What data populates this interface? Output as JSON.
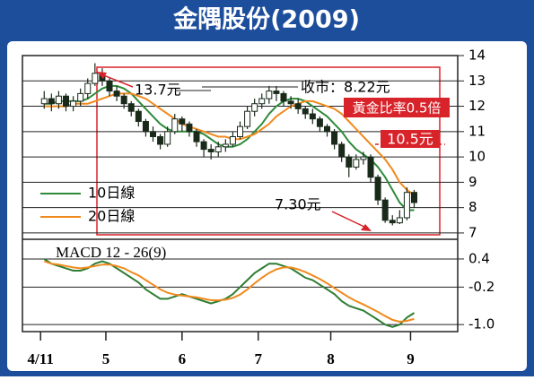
{
  "chart_data": [
    {
      "type": "candlestick",
      "title": "金隅股份(2009)",
      "x": [
        1,
        3,
        5,
        7,
        9,
        11,
        13,
        15,
        17,
        19,
        21,
        23,
        25,
        27,
        29,
        31,
        33,
        35,
        37,
        39,
        41,
        43,
        45,
        47,
        49,
        51,
        53,
        55,
        57,
        59,
        61,
        63,
        65,
        67,
        69,
        71,
        73,
        75,
        77,
        79,
        81,
        83,
        85,
        87,
        89,
        91,
        93,
        95,
        97,
        99,
        101,
        103
      ],
      "open": [
        12.1,
        12.3,
        12.1,
        12.4,
        12.0,
        12.2,
        12.5,
        12.9,
        13.3,
        13.0,
        12.6,
        12.4,
        12.1,
        11.8,
        11.4,
        11.0,
        10.8,
        10.5,
        11.0,
        11.5,
        11.3,
        11.0,
        10.6,
        10.3,
        10.2,
        10.4,
        10.5,
        10.8,
        11.2,
        11.8,
        12.1,
        12.3,
        12.6,
        12.5,
        12.2,
        12.1,
        11.9,
        11.7,
        11.5,
        11.2,
        11.0,
        10.5,
        10.0,
        9.6,
        9.9,
        10.0,
        9.2,
        8.3,
        7.5,
        7.4,
        7.6,
        8.6
      ],
      "high": [
        12.6,
        12.5,
        12.6,
        12.5,
        12.4,
        12.7,
        13.1,
        13.7,
        13.5,
        13.1,
        12.8,
        12.5,
        12.2,
        11.9,
        11.5,
        11.2,
        10.9,
        11.2,
        11.7,
        11.6,
        11.4,
        11.1,
        10.7,
        10.5,
        10.6,
        10.7,
        11.0,
        11.4,
        12.0,
        12.3,
        12.5,
        12.8,
        12.8,
        12.6,
        12.4,
        12.3,
        12.0,
        11.9,
        11.6,
        11.3,
        11.1,
        10.6,
        10.1,
        10.1,
        10.2,
        10.1,
        9.3,
        8.4,
        7.7,
        7.9,
        8.8,
        8.7
      ],
      "low": [
        11.9,
        11.8,
        11.9,
        11.8,
        11.8,
        12.0,
        12.3,
        12.8,
        12.8,
        12.4,
        12.2,
        11.9,
        11.6,
        11.2,
        10.8,
        10.6,
        10.3,
        10.4,
        10.9,
        11.0,
        10.8,
        10.4,
        10.0,
        9.9,
        10.0,
        10.2,
        10.4,
        10.7,
        11.1,
        11.6,
        11.9,
        12.1,
        12.2,
        12.0,
        11.9,
        11.7,
        11.5,
        11.3,
        11.0,
        10.8,
        10.3,
        9.8,
        9.2,
        9.5,
        9.7,
        9.0,
        8.1,
        7.4,
        7.3,
        7.35,
        7.5,
        8.0
      ],
      "close": [
        12.3,
        12.1,
        12.4,
        12.0,
        12.2,
        12.5,
        12.9,
        13.3,
        13.0,
        12.6,
        12.4,
        12.1,
        11.8,
        11.4,
        11.0,
        10.8,
        10.5,
        11.0,
        11.5,
        11.3,
        11.0,
        10.6,
        10.3,
        10.2,
        10.4,
        10.5,
        10.8,
        11.2,
        11.8,
        12.1,
        12.3,
        12.6,
        12.5,
        12.2,
        12.1,
        11.9,
        11.7,
        11.5,
        11.2,
        11.0,
        10.5,
        10.0,
        9.6,
        9.9,
        10.0,
        9.2,
        8.3,
        7.5,
        7.4,
        7.6,
        8.6,
        8.2
      ],
      "candle_color": "#1a2a1a",
      "series": [
        {
          "name": "10日線",
          "color": "#2e8b3a",
          "values": [
            12.1,
            12.1,
            12.2,
            12.2,
            12.2,
            12.2,
            12.3,
            12.5,
            12.7,
            12.8,
            12.8,
            12.7,
            12.5,
            12.2,
            11.9,
            11.6,
            11.3,
            11.1,
            11.0,
            11.0,
            11.0,
            11.0,
            10.9,
            10.7,
            10.5,
            10.4,
            10.4,
            10.5,
            10.7,
            11.0,
            11.3,
            11.7,
            12.0,
            12.2,
            12.3,
            12.3,
            12.2,
            12.0,
            11.8,
            11.6,
            11.3,
            11.0,
            10.6,
            10.3,
            10.1,
            9.9,
            9.6,
            9.2,
            8.7,
            8.2,
            7.9,
            7.9
          ]
        },
        {
          "name": "20日線",
          "color": "#f08a1e",
          "values": [
            12.0,
            12.0,
            12.0,
            12.0,
            12.1,
            12.1,
            12.1,
            12.2,
            12.3,
            12.4,
            12.5,
            12.5,
            12.5,
            12.4,
            12.3,
            12.1,
            11.9,
            11.7,
            11.5,
            11.3,
            11.2,
            11.1,
            11.0,
            10.9,
            10.8,
            10.8,
            10.7,
            10.7,
            10.8,
            10.9,
            11.1,
            11.3,
            11.6,
            11.8,
            12.0,
            12.1,
            12.2,
            12.2,
            12.1,
            12.0,
            11.9,
            11.7,
            11.4,
            11.1,
            10.8,
            10.5,
            10.2,
            9.9,
            9.5,
            9.0,
            8.7,
            8.5
          ]
        }
      ],
      "annotations": [
        "13.7元",
        "收市：8.22元",
        "黃金比率0.5倍",
        "7.30元"
      ],
      "level_line": {
        "value": 10.5,
        "label": "10.5元",
        "color": "#d8232a"
      },
      "xlim": [
        -5,
        115
      ],
      "ylim": [
        6.75,
        14
      ],
      "yticks": [
        7,
        8,
        9,
        10,
        11,
        12,
        13,
        14
      ],
      "grid": true
    },
    {
      "type": "line",
      "title": "MACD 12 - 26(9)",
      "x": [
        1,
        3,
        5,
        7,
        9,
        11,
        13,
        15,
        17,
        19,
        21,
        23,
        25,
        27,
        29,
        31,
        33,
        35,
        37,
        39,
        41,
        43,
        45,
        47,
        49,
        51,
        53,
        55,
        57,
        59,
        61,
        63,
        65,
        67,
        69,
        71,
        73,
        75,
        77,
        79,
        81,
        83,
        85,
        87,
        89,
        91,
        93,
        95,
        97,
        99,
        101,
        103
      ],
      "series": [
        {
          "color": "#2e7d32",
          "values": [
            0.4,
            0.3,
            0.25,
            0.2,
            0.15,
            0.15,
            0.2,
            0.3,
            0.35,
            0.3,
            0.2,
            0.1,
            0.0,
            -0.1,
            -0.25,
            -0.35,
            -0.45,
            -0.45,
            -0.4,
            -0.35,
            -0.4,
            -0.45,
            -0.5,
            -0.55,
            -0.5,
            -0.45,
            -0.35,
            -0.2,
            -0.05,
            0.1,
            0.2,
            0.3,
            0.3,
            0.25,
            0.2,
            0.1,
            0.0,
            -0.05,
            -0.15,
            -0.25,
            -0.35,
            -0.5,
            -0.6,
            -0.65,
            -0.7,
            -0.8,
            -0.9,
            -1.0,
            -1.05,
            -1.0,
            -0.85,
            -0.75
          ]
        },
        {
          "color": "#f08a1e",
          "values": [
            0.35,
            0.3,
            0.28,
            0.25,
            0.22,
            0.2,
            0.22,
            0.25,
            0.28,
            0.28,
            0.25,
            0.2,
            0.12,
            0.05,
            -0.05,
            -0.15,
            -0.25,
            -0.32,
            -0.36,
            -0.38,
            -0.4,
            -0.42,
            -0.45,
            -0.48,
            -0.48,
            -0.47,
            -0.43,
            -0.36,
            -0.25,
            -0.12,
            0.0,
            0.1,
            0.18,
            0.22,
            0.22,
            0.18,
            0.12,
            0.05,
            -0.03,
            -0.12,
            -0.22,
            -0.32,
            -0.42,
            -0.5,
            -0.57,
            -0.65,
            -0.73,
            -0.82,
            -0.9,
            -0.94,
            -0.92,
            -0.88
          ]
        }
      ],
      "xlim": [
        -5,
        115
      ],
      "ylim": [
        -1.15,
        0.82
      ],
      "yticks": [
        {
          "value": 0.4,
          "label": "0.4"
        },
        -0.2,
        {
          "value": -1.0,
          "label": "-1.0"
        }
      ],
      "xticks": [
        {
          "value": 0,
          "label": "4/11"
        },
        {
          "value": 18,
          "label": "5"
        },
        {
          "value": 39,
          "label": "6"
        },
        {
          "value": 60,
          "label": "7"
        },
        {
          "value": 80,
          "label": "8"
        },
        {
          "value": 102,
          "label": "9"
        }
      ],
      "grid": true
    }
  ]
}
